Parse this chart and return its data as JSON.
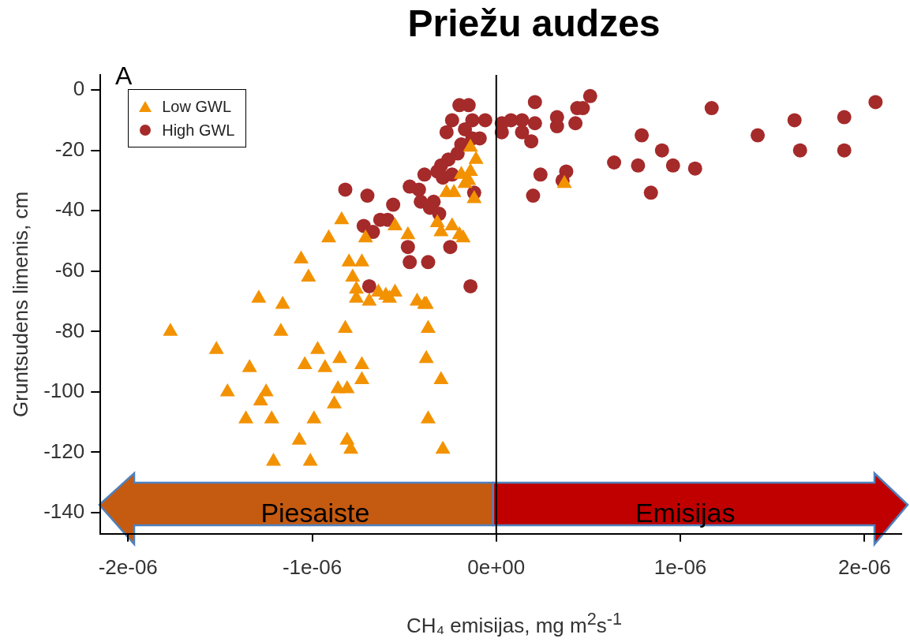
{
  "chart_data": {
    "type": "scatter",
    "title": "Priežu audzes",
    "xlabel": "CH₄ emisijas, mg m$^{2}$s$^{-1}$",
    "ylabel": "Gruntsudens limenis, cm",
    "annotations": [
      "A",
      "Piesaiste",
      "Emisijas"
    ],
    "xlim": [
      -2.15e-06,
      2.2e-06
    ],
    "ylim": [
      -147,
      5
    ],
    "xticks": [
      {
        "value": -2e-06,
        "label": "-2e-06"
      },
      {
        "value": -1e-06,
        "label": "-1e-06"
      },
      {
        "value": 0,
        "label": "0e+00"
      },
      {
        "value": 1e-06,
        "label": "1e-06"
      },
      {
        "value": 2e-06,
        "label": "2e-06"
      }
    ],
    "yticks": [
      0,
      -20,
      -40,
      -60,
      -80,
      -100,
      -120,
      -140
    ],
    "legend": "top left",
    "ref_lines": [
      {
        "axis": "x",
        "value": 0
      }
    ],
    "series": [
      {
        "name": "Low GWL",
        "color": "#f39200",
        "marker": "triangle",
        "x": [
          -1.77e-06,
          -1.52e-06,
          -1.46e-06,
          -1.34e-06,
          -1.29e-06,
          -1.28e-06,
          -1.25e-06,
          -1.36e-06,
          -1.22e-06,
          -1.21e-06,
          -1.16e-06,
          -1.17e-06,
          -1.07e-06,
          -1.06e-06,
          -1.04e-06,
          -1.02e-06,
          -9.9e-07,
          -1.01e-06,
          -9.7e-07,
          -9.3e-07,
          -9.1e-07,
          -8.8e-07,
          -8.6e-07,
          -8.5e-07,
          -8.4e-07,
          -8.2e-07,
          -8.1e-07,
          -8.1e-07,
          -7.9e-07,
          -8e-07,
          -7.8e-07,
          -7.6e-07,
          -7.6e-07,
          -7.3e-07,
          -7.3e-07,
          -7.3e-07,
          -7.1e-07,
          -6.9e-07,
          -6.4e-07,
          -6e-07,
          -5.8e-07,
          -5.5e-07,
          -5.5e-07,
          -4.8e-07,
          -4.3e-07,
          -3.9e-07,
          -3.7e-07,
          -3.8e-07,
          -3.7e-07,
          -3.8e-07,
          -3e-07,
          -2.9e-07,
          -3.2e-07,
          -3e-07,
          -2.4e-07,
          -2e-07,
          -1.8e-07,
          -2.7e-07,
          -2.3e-07,
          -1.9e-07,
          -1.5e-07,
          -1.4e-07,
          -1.1e-07,
          -1.4e-07,
          -1.7e-07,
          -1.2e-07,
          3.7e-07
        ],
        "values": [
          -80,
          -86,
          -100,
          -92,
          -69,
          -103,
          -100,
          -109,
          -109,
          -123,
          -71,
          -80,
          -116,
          -56,
          -91,
          -62,
          -109,
          -123,
          -86,
          -92,
          -49,
          -104,
          -99,
          -89,
          -43,
          -79,
          -116,
          -99,
          -119,
          -57,
          -62,
          -66,
          -69,
          -57,
          -91,
          -96,
          -49,
          -70,
          -67,
          -68,
          -69,
          -67,
          -45,
          -48,
          -70,
          -71,
          -79,
          -89,
          -109,
          -71,
          -96,
          -119,
          -44,
          -47,
          -45,
          -48,
          -49,
          -34,
          -34,
          -28,
          -30,
          -19,
          -23,
          -27,
          -31,
          -36,
          -31
        ]
      },
      {
        "name": "High GWL",
        "color": "#a52a2a",
        "marker": "circle",
        "x": [
          -2e-07,
          -1.5e-07,
          -2.4e-07,
          -1.3e-07,
          -6e-08,
          -2.7e-07,
          -1.7e-07,
          -9e-08,
          -1.3e-07,
          -1.9e-07,
          -2.1e-07,
          -2.6e-07,
          -3e-07,
          -3.9e-07,
          -3.2e-07,
          -2.9e-07,
          -2.4e-07,
          -8.2e-07,
          -7e-07,
          -5.6e-07,
          -4.7e-07,
          -4.2e-07,
          -4.1e-07,
          -3.4e-07,
          -3.6e-07,
          -3.1e-07,
          -1.2e-07,
          -7.2e-07,
          -6.7e-07,
          -6.3e-07,
          -5.9e-07,
          -4.8e-07,
          -4.7e-07,
          -3.7e-07,
          -2.5e-07,
          -6.9e-07,
          -1.4e-07,
          3e-08,
          3e-08,
          8e-08,
          1.4e-07,
          1.4e-07,
          1.9e-07,
          2.1e-07,
          2.1e-07,
          3.3e-07,
          3.3e-07,
          4.4e-07,
          4.3e-07,
          2.4e-07,
          3.8e-07,
          3.6e-07,
          2e-07,
          5.1e-07,
          4.7e-07,
          6.4e-07,
          7.9e-07,
          7.7e-07,
          9e-07,
          9.6e-07,
          8.4e-07,
          1.08e-06,
          1.17e-06,
          1.42e-06,
          1.62e-06,
          1.65e-06,
          1.89e-06,
          1.89e-06,
          2.06e-06
        ],
        "values": [
          -5,
          -5,
          -10,
          -10,
          -10,
          -14,
          -13,
          -16,
          -16,
          -18,
          -21,
          -23,
          -25,
          -28,
          -27,
          -29,
          -28,
          -33,
          -35,
          -38,
          -32,
          -33,
          -37,
          -37,
          -39,
          -41,
          -34,
          -45,
          -47,
          -43,
          -43,
          -52,
          -57,
          -57,
          -52,
          -65,
          -65,
          -14,
          -11,
          -10,
          -10,
          -14,
          -17,
          -11,
          -4,
          -9,
          -12,
          -6,
          -11,
          -28,
          -27,
          -30,
          -35,
          -2,
          -6,
          -24,
          -15,
          -25,
          -20,
          -25,
          -34,
          -26,
          -6,
          -15,
          -10,
          -20,
          -9,
          -20,
          -4
        ]
      }
    ]
  }
}
